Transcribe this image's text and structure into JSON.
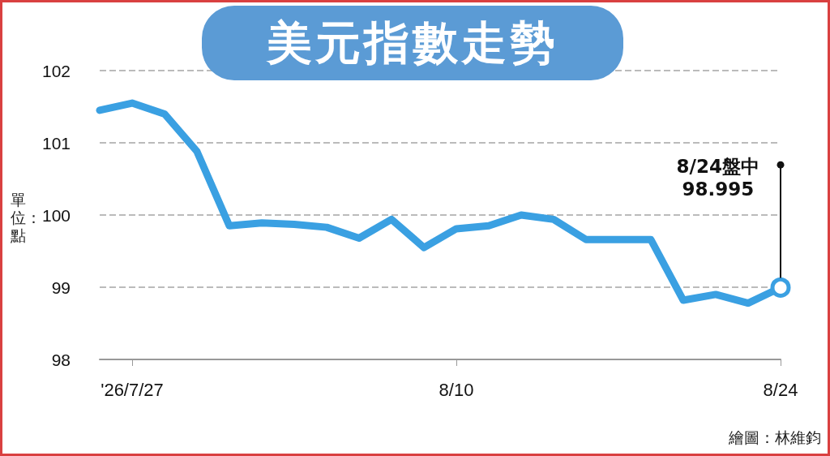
{
  "chart_data": {
    "type": "line",
    "title": "美元指數走勢",
    "ylabel": "單位：點",
    "categories": [
      null,
      "'26/7/27",
      null,
      null,
      null,
      null,
      null,
      null,
      null,
      null,
      null,
      "8/10",
      null,
      null,
      null,
      null,
      null,
      null,
      null,
      null,
      null,
      "8/24"
    ],
    "series": [
      {
        "color": "#3aa0e2",
        "values": [
          101.45,
          101.55,
          101.4,
          100.88,
          99.85,
          99.89,
          99.87,
          99.83,
          99.68,
          99.94,
          99.55,
          99.81,
          99.85,
          100.0,
          99.94,
          99.66,
          99.66,
          99.66,
          98.82,
          98.9,
          98.78,
          98.995
        ]
      }
    ],
    "ylim": [
      98,
      102
    ],
    "yticks": [
      98,
      99,
      100,
      101,
      102
    ],
    "grid": "y",
    "line_style": "solid",
    "annotations": [
      "8/24盤中\n98.995",
      "繪圖：林維鈞"
    ]
  }
}
